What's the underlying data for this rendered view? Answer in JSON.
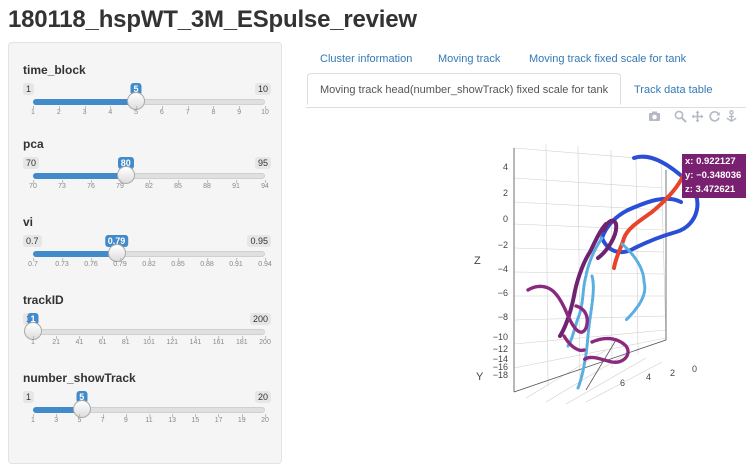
{
  "page": {
    "title": "180118_hspWT_3M_ESpulse_review"
  },
  "sliders": [
    {
      "label": "time_block",
      "min": "1",
      "max": "10",
      "value": "5",
      "fraction": 0.444,
      "ticks": [
        "1",
        "2",
        "3",
        "4",
        "5",
        "6",
        "7",
        "8",
        "9",
        "10"
      ]
    },
    {
      "label": "pca",
      "min": "70",
      "max": "95",
      "value": "80",
      "fraction": 0.4,
      "ticks": [
        "70",
        "73",
        "76",
        "79",
        "82",
        "85",
        "88",
        "91",
        "94"
      ]
    },
    {
      "label": "vi",
      "min": "0.7",
      "max": "0.95",
      "value": "0.79",
      "fraction": 0.36,
      "ticks": [
        "0.7",
        "0.73",
        "0.76",
        "0.79",
        "0.82",
        "0.85",
        "0.88",
        "0.91",
        "0.94"
      ]
    },
    {
      "label": "trackID",
      "min": "1",
      "max": "200",
      "value": "1",
      "fraction": 0.0,
      "ticks": [
        "1",
        "21",
        "41",
        "61",
        "81",
        "101",
        "121",
        "141",
        "161",
        "181",
        "200"
      ]
    },
    {
      "label": "number_showTrack",
      "min": "1",
      "max": "20",
      "value": "5",
      "fraction": 0.21,
      "ticks": [
        "1",
        "3",
        "5",
        "7",
        "9",
        "11",
        "13",
        "15",
        "17",
        "19",
        "20"
      ]
    }
  ],
  "tabs": {
    "t1": "Cluster information",
    "t2": "Moving track",
    "t3": "Moving track fixed scale for tank",
    "t4": "Moving track head(number_showTrack) fixed scale for tank",
    "t5": "Track data table"
  },
  "plot": {
    "z_axis_title": "Z",
    "y_axis_title": "Y",
    "z_ticks": [
      "4",
      "2",
      "0",
      "−2",
      "−4",
      "−6",
      "−8",
      "−10",
      "−12",
      "−14",
      "−16",
      "−18"
    ],
    "y_ticks": [
      "6",
      "4",
      "2",
      "0"
    ],
    "hover": {
      "x": "x: 0.922127",
      "y": "y: −0.348036",
      "z": "z: 3.472621",
      "color": "#7a2070"
    },
    "series_colors": [
      "#2a4fd6",
      "#e8432b",
      "#5aaee0",
      "#6e2270",
      "#8a2a7e"
    ]
  },
  "modebar_icons": [
    "camera-icon",
    "zoom-icon",
    "pan-icon",
    "orbit-icon",
    "turntable-icon"
  ]
}
